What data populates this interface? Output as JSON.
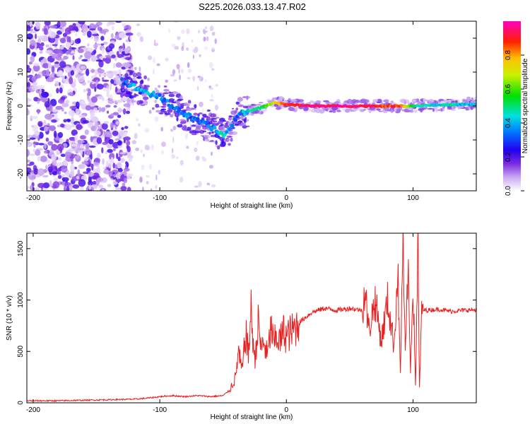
{
  "title": "S225.2026.033.13.47.R02",
  "chart_data": [
    {
      "type": "heatmap",
      "xlabel": "Height of straight line (km)",
      "ylabel": "Frequency (Hz)",
      "xlim": [
        -205,
        150
      ],
      "ylim": [
        -25,
        25
      ],
      "xticks": [
        -200,
        -100,
        0,
        100
      ],
      "yticks": [
        -20,
        -10,
        0,
        10,
        20
      ],
      "x_tick_labels": [
        "-200",
        "-100",
        "0",
        "100"
      ],
      "y_tick_labels": [
        "-20",
        "-10",
        "0",
        "10",
        "20"
      ],
      "colorbar": {
        "label": "Normalized spectral amplitude",
        "range": [
          0,
          1
        ],
        "ticks": [
          0.0,
          0.2,
          0.4,
          0.6,
          0.8
        ],
        "tick_labels": [
          "0.0",
          "0.2",
          "0.4",
          "0.6",
          "0.8"
        ]
      },
      "ridge": {
        "x": [
          -130,
          -125,
          -120,
          -110,
          -100,
          -90,
          -80,
          -70,
          -60,
          -55,
          -50,
          -45,
          -40,
          -35,
          -30,
          -20,
          -10,
          0,
          10,
          20,
          30,
          40,
          50,
          60,
          70,
          80,
          90,
          100,
          110,
          120,
          130,
          140,
          150
        ],
        "freq": [
          7.5,
          6.5,
          5.5,
          4.0,
          2.5,
          0.0,
          -2.5,
          -4.5,
          -6.0,
          -7.5,
          -8.5,
          -7.0,
          -3.5,
          -2.0,
          -1.5,
          -0.5,
          1.0,
          0.5,
          0.2,
          0.0,
          0.0,
          0.0,
          0.0,
          0.0,
          0.0,
          0.0,
          0.0,
          0.0,
          0.2,
          0.3,
          0.4,
          0.5,
          0.5
        ],
        "amplitude": [
          0.3,
          0.35,
          0.4,
          0.4,
          0.35,
          0.35,
          0.35,
          0.35,
          0.35,
          0.4,
          0.45,
          0.35,
          0.3,
          0.4,
          0.45,
          0.5,
          0.7,
          0.9,
          0.9,
          0.95,
          0.95,
          0.95,
          0.95,
          0.95,
          0.9,
          0.85,
          0.9,
          0.5,
          0.45,
          0.45,
          0.45,
          0.4,
          0.4
        ]
      }
    },
    {
      "type": "line",
      "xlabel": "Height of straight line (km)",
      "ylabel": "SNR (10 * v/v)",
      "xlim": [
        -205,
        150
      ],
      "ylim": [
        0,
        1650
      ],
      "xticks": [
        -200,
        -100,
        0,
        100
      ],
      "yticks": [
        0,
        500,
        1000,
        1500
      ],
      "x_tick_labels": [
        "-200",
        "-100",
        "0",
        "100"
      ],
      "y_tick_labels": [
        "0",
        "500",
        "1000",
        "1500"
      ],
      "series": [
        {
          "name": "SNR",
          "color": "#e82020",
          "x": [
            -205,
            -180,
            -160,
            -140,
            -120,
            -110,
            -100,
            -90,
            -80,
            -70,
            -60,
            -50,
            -45,
            -40,
            -38,
            -35,
            -32,
            -30,
            -28,
            -25,
            -22,
            -20,
            -18,
            -15,
            -12,
            -10,
            -8,
            -5,
            -2,
            0,
            5,
            10,
            20,
            30,
            40,
            50,
            60,
            62,
            65,
            70,
            75,
            80,
            85,
            88,
            90,
            92,
            94,
            96,
            98,
            100,
            102,
            104,
            105,
            107,
            110,
            120,
            130,
            140,
            150
          ],
          "y": [
            20,
            20,
            25,
            30,
            35,
            45,
            60,
            70,
            60,
            70,
            60,
            70,
            120,
            250,
            500,
            300,
            700,
            450,
            900,
            400,
            800,
            500,
            600,
            450,
            750,
            550,
            650,
            600,
            700,
            650,
            700,
            780,
            880,
            920,
            900,
            920,
            900,
            1100,
            700,
            1000,
            600,
            1000,
            550,
            1300,
            250,
            1600,
            400,
            1350,
            300,
            1200,
            150,
            1600,
            100,
            900,
            900,
            910,
            890,
            900,
            905
          ]
        }
      ]
    }
  ]
}
